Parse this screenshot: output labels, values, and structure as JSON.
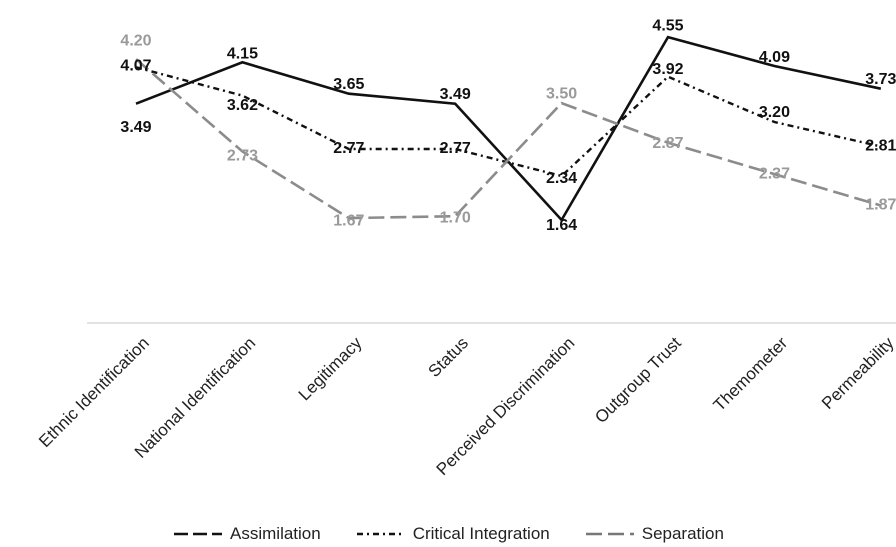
{
  "chart_data": {
    "type": "line",
    "categories": [
      "Ethnic Identification",
      "National Identification",
      "Legitimacy",
      "Status",
      "Perceived Discrimination",
      "Outgroup Trust",
      "Themometer",
      "Permeability"
    ],
    "series": [
      {
        "name": "Assimilation",
        "values": [
          3.49,
          4.15,
          3.65,
          3.49,
          1.64,
          4.55,
          4.09,
          3.73
        ],
        "labels": [
          "3.49",
          "4.15",
          "3.65",
          "3.49",
          "1.64",
          "4.55",
          "4.09",
          "3.73"
        ],
        "color": "#111111",
        "dash": "solid"
      },
      {
        "name": "Critical Integration",
        "values": [
          4.07,
          3.62,
          2.77,
          2.77,
          2.34,
          3.92,
          3.2,
          2.81
        ],
        "labels": [
          "4.07",
          "3.62",
          "2.77",
          "2.77",
          "2.34",
          "3.92",
          "3.20",
          "2.81"
        ],
        "color": "#111111",
        "dash": "dash-dot"
      },
      {
        "name": "Separation",
        "values": [
          4.2,
          2.73,
          1.67,
          1.7,
          3.5,
          2.87,
          2.37,
          1.87
        ],
        "labels": [
          "4.20",
          "2.73",
          "1.67",
          "1.70",
          "3.50",
          "2.87",
          "2.37",
          "1.87"
        ],
        "color": "#8c8c8c",
        "dash": "long-dash"
      }
    ],
    "title": "",
    "xlabel": "",
    "ylabel": "",
    "ylim": [
      0,
      4.6
    ],
    "grid": false,
    "y_axis_visible": false,
    "legend": "bottom"
  }
}
